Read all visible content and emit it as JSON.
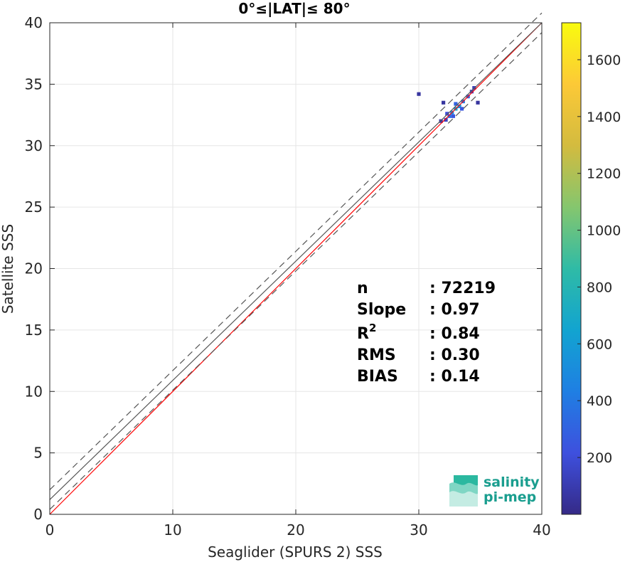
{
  "chart_data": {
    "type": "heatmap",
    "title": "0°≤|LAT|≤ 80°",
    "xlabel": "Seaglider (SPURS 2) SSS",
    "ylabel": "Satellite SSS",
    "xlim": [
      0,
      40
    ],
    "ylim": [
      0,
      40
    ],
    "xticks": [
      "0",
      "10",
      "20",
      "30",
      "40"
    ],
    "yticks": [
      "0",
      "5",
      "10",
      "15",
      "20",
      "25",
      "30",
      "35",
      "40"
    ],
    "grid": true,
    "colorbar": {
      "range": [
        0,
        1730
      ],
      "ticks": [
        "200",
        "400",
        "600",
        "800",
        "1000",
        "1200",
        "1400",
        "1600"
      ],
      "colormap": "parula",
      "colors": [
        "#352a87",
        "#3e50de",
        "#1f7fe3",
        "#12a4d0",
        "#2fbba6",
        "#85c66e",
        "#d3bb3f",
        "#fcc937",
        "#f9fb0e"
      ]
    },
    "density_cells": [
      {
        "x": 32.2,
        "y": 32.1,
        "count": 150
      },
      {
        "x": 32.5,
        "y": 32.4,
        "count": 350
      },
      {
        "x": 32.7,
        "y": 32.7,
        "count": 500
      },
      {
        "x": 33.0,
        "y": 33.0,
        "count": 650
      },
      {
        "x": 33.3,
        "y": 33.2,
        "count": 550
      },
      {
        "x": 33.6,
        "y": 33.6,
        "count": 400
      },
      {
        "x": 34.0,
        "y": 34.0,
        "count": 300
      },
      {
        "x": 34.3,
        "y": 34.4,
        "count": 150
      },
      {
        "x": 32.8,
        "y": 32.4,
        "count": 250
      },
      {
        "x": 32.3,
        "y": 32.6,
        "count": 200
      },
      {
        "x": 33.5,
        "y": 33.0,
        "count": 250
      },
      {
        "x": 33.0,
        "y": 33.4,
        "count": 300
      },
      {
        "x": 31.8,
        "y": 32.0,
        "count": 80
      },
      {
        "x": 30.0,
        "y": 34.2,
        "count": 60
      },
      {
        "x": 34.8,
        "y": 33.5,
        "count": 60
      },
      {
        "x": 32.0,
        "y": 33.5,
        "count": 60
      },
      {
        "x": 34.5,
        "y": 34.7,
        "count": 120
      }
    ],
    "lines": [
      {
        "name": "one-to-one",
        "color": "#ff0000",
        "slope": 1,
        "intercept": 0,
        "style": "solid"
      },
      {
        "name": "regression",
        "color": "#555555",
        "slope": 0.97,
        "intercept": 1.2,
        "style": "solid"
      },
      {
        "name": "regression-upper",
        "color": "#555555",
        "slope": 0.97,
        "intercept": 2.0,
        "style": "dashed"
      },
      {
        "name": "regression-lower",
        "color": "#555555",
        "slope": 0.97,
        "intercept": 0.4,
        "style": "dashed"
      }
    ],
    "stats": [
      {
        "label": "n",
        "value": ": 72219"
      },
      {
        "label": "Slope",
        "value": ": 0.97"
      },
      {
        "label": "R",
        "sup": "2",
        "value": ": 0.84"
      },
      {
        "label": "RMS",
        "value": ": 0.30"
      },
      {
        "label": "BIAS",
        "value": ": 0.14"
      }
    ]
  },
  "logo": {
    "line1": "salinity",
    "line2": "pi-mep",
    "color": "#1a9e8f"
  }
}
